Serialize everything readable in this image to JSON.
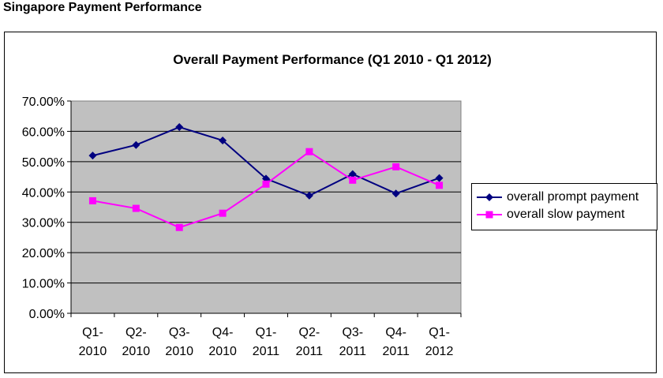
{
  "page_title": "Singapore Payment Performance",
  "chart_data": {
    "type": "line",
    "title": "Overall Payment Performance (Q1 2010 - Q1 2012)",
    "xlabel": "",
    "ylabel": "",
    "categories": [
      [
        "Q1-",
        "2010"
      ],
      [
        "Q2-",
        "2010"
      ],
      [
        "Q3-",
        "2010"
      ],
      [
        "Q4-",
        "2010"
      ],
      [
        "Q1-",
        "2011"
      ],
      [
        "Q2-",
        "2011"
      ],
      [
        "Q3-",
        "2011"
      ],
      [
        "Q4-",
        "2011"
      ],
      [
        "Q1-",
        "2012"
      ]
    ],
    "ylim": [
      0,
      70
    ],
    "yticks": [
      "0.00%",
      "10.00%",
      "20.00%",
      "30.00%",
      "40.00%",
      "50.00%",
      "60.00%",
      "70.00%"
    ],
    "grid": true,
    "plot_background": "#C0C0C0",
    "legend_position": "right",
    "series": [
      {
        "name": "overall prompt payment",
        "color": "#000080",
        "marker": "diamond",
        "values": [
          52.0,
          55.5,
          61.4,
          57.0,
          44.4,
          38.8,
          45.9,
          39.5,
          44.6
        ]
      },
      {
        "name": "overall slow payment",
        "color": "#FF00FF",
        "marker": "square",
        "values": [
          37.1,
          34.6,
          28.3,
          33.0,
          42.6,
          53.3,
          43.9,
          48.3,
          42.2
        ]
      }
    ]
  }
}
